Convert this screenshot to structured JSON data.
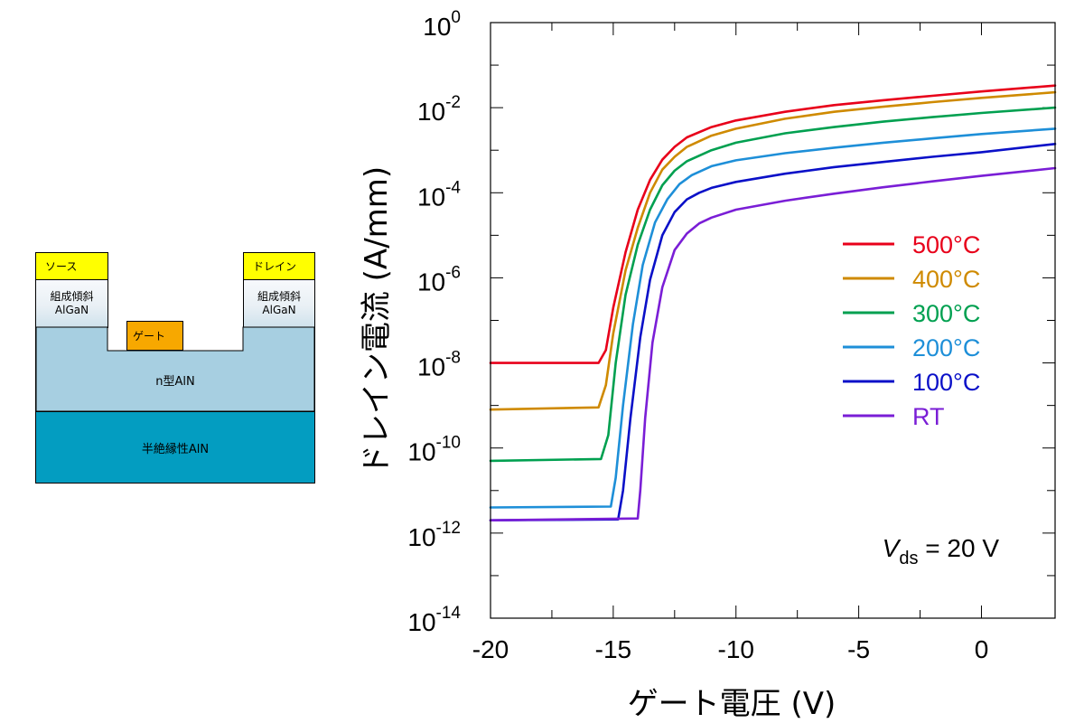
{
  "device": {
    "source": "ソース",
    "drain": "ドレイン",
    "gate": "ゲート",
    "graded_label": "組成傾斜",
    "graded_material": "AlGaN",
    "channel": "n型AlN",
    "substrate": "半絶縁性AlN",
    "colors": {
      "contact": "#ffff00",
      "gate": "#f7a800",
      "channel": "#a7cfe1",
      "substrate": "#039dc1"
    }
  },
  "chart_data": {
    "type": "line",
    "xlabel": "ゲート電圧 (V)",
    "ylabel": "ドレイン電流 (A/mm)",
    "xlim": [
      -20,
      3
    ],
    "ylim": [
      1e-14,
      1
    ],
    "y_scale": "log",
    "x_ticks": [
      "-20",
      "-15",
      "-10",
      "-5",
      "0"
    ],
    "y_tick_exponents": [
      "0",
      "-2",
      "-4",
      "-6",
      "-8",
      "-10",
      "-12",
      "-14"
    ],
    "y_tick_base": "10",
    "annotation": {
      "symbol": "V",
      "subscript": "ds",
      "rest": " = 20 V"
    },
    "legend_position": "right",
    "series": [
      {
        "name": "500°C",
        "color": "#e8001a",
        "x": [
          -20,
          -15.6,
          -15.3,
          -15.0,
          -14.5,
          -14.0,
          -13.5,
          -13.0,
          -12.5,
          -12.0,
          -11.0,
          -10.0,
          -8.0,
          -6.0,
          -4.0,
          -2.0,
          0.0,
          3.0
        ],
        "y": [
          1e-08,
          1e-08,
          2e-08,
          2e-07,
          4e-06,
          4e-05,
          0.0002,
          0.0006,
          0.0012,
          0.002,
          0.0035,
          0.005,
          0.008,
          0.0115,
          0.015,
          0.019,
          0.024,
          0.033
        ]
      },
      {
        "name": "400°C",
        "color": "#cf8a00",
        "x": [
          -20,
          -15.6,
          -15.3,
          -15.0,
          -14.5,
          -14.0,
          -13.5,
          -13.0,
          -12.5,
          -12.0,
          -11.0,
          -10.0,
          -8.0,
          -6.0,
          -4.0,
          -2.0,
          0.0,
          3.0
        ],
        "y": [
          8e-10,
          9e-10,
          3e-09,
          5e-08,
          1.5e-06,
          1.5e-05,
          0.0001,
          0.00035,
          0.0007,
          0.0012,
          0.0022,
          0.0032,
          0.0055,
          0.008,
          0.0105,
          0.0135,
          0.017,
          0.023
        ]
      },
      {
        "name": "300°C",
        "color": "#00a050",
        "x": [
          -20,
          -15.5,
          -15.2,
          -14.9,
          -14.5,
          -14.0,
          -13.5,
          -13.0,
          -12.5,
          -12.0,
          -11.0,
          -10.0,
          -8.0,
          -6.0,
          -4.0,
          -2.0,
          0.0,
          3.0
        ],
        "y": [
          5e-11,
          5.5e-11,
          2e-10,
          1e-08,
          4e-07,
          6e-06,
          4e-05,
          0.00015,
          0.00033,
          0.00055,
          0.001,
          0.0015,
          0.0025,
          0.0035,
          0.0047,
          0.006,
          0.0075,
          0.01
        ]
      },
      {
        "name": "200°C",
        "color": "#1e8fd8",
        "x": [
          -20,
          -15.1,
          -14.9,
          -14.6,
          -14.2,
          -13.8,
          -13.3,
          -12.8,
          -12.3,
          -11.8,
          -11.0,
          -10.0,
          -8.0,
          -6.0,
          -4.0,
          -2.0,
          0.0,
          3.0
        ],
        "y": [
          4e-12,
          4.2e-12,
          2e-11,
          1e-09,
          8e-08,
          2e-06,
          2e-05,
          7e-05,
          0.00016,
          0.00026,
          0.00042,
          0.00058,
          0.00085,
          0.00115,
          0.0015,
          0.0019,
          0.0024,
          0.0032
        ]
      },
      {
        "name": "100°C",
        "color": "#0a10c8",
        "x": [
          -20,
          -14.8,
          -14.6,
          -14.3,
          -13.9,
          -13.5,
          -13.0,
          -12.5,
          -12.0,
          -11.5,
          -11.0,
          -10.0,
          -8.0,
          -6.0,
          -4.0,
          -2.0,
          0.0,
          3.0
        ],
        "y": [
          2e-12,
          2.1e-12,
          1e-11,
          5e-10,
          4e-08,
          9e-07,
          1e-05,
          3.5e-05,
          7e-05,
          0.0001,
          0.00013,
          0.00018,
          0.00028,
          0.0004,
          0.00053,
          0.0007,
          0.0009,
          0.0014
        ]
      },
      {
        "name": "RT",
        "color": "#7a1ed6",
        "x": [
          -20,
          -14.0,
          -13.9,
          -13.7,
          -13.4,
          -13.0,
          -12.5,
          -12.0,
          -11.5,
          -11.0,
          -10.0,
          -8.0,
          -6.0,
          -4.0,
          -2.0,
          0.0,
          3.0
        ],
        "y": [
          2e-12,
          2.2e-12,
          1e-11,
          5e-10,
          3e-08,
          6e-07,
          4.5e-06,
          1.1e-05,
          1.9e-05,
          2.6e-05,
          4e-05,
          6.5e-05,
          9.5e-05,
          0.000135,
          0.000185,
          0.00025,
          0.00038
        ]
      }
    ]
  }
}
